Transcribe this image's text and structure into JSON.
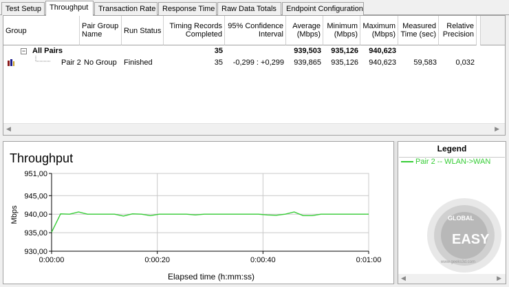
{
  "tabs": [
    {
      "label": "Test Setup"
    },
    {
      "label": "Throughput"
    },
    {
      "label": "Transaction Rate"
    },
    {
      "label": "Response Time"
    },
    {
      "label": "Raw Data Totals"
    },
    {
      "label": "Endpoint Configuration"
    }
  ],
  "table": {
    "headers": {
      "group": "Group",
      "pair_group_1": "Pair Group",
      "pair_group_2": "Name",
      "run_status": "Run Status",
      "timing_1": "Timing Records",
      "timing_2": "Completed",
      "conf_1": "95% Confidence",
      "conf_2": "Interval",
      "avg_1": "Average",
      "avg_2": "(Mbps)",
      "min_1": "Minimum",
      "min_2": "(Mbps)",
      "max_1": "Maximum",
      "max_2": "(Mbps)",
      "meas_1": "Measured",
      "meas_2": "Time (sec)",
      "rel_1": "Relative",
      "rel_2": "Precision"
    },
    "all_pairs": {
      "expander": "−",
      "label": "All Pairs",
      "timing": "35",
      "average": "939,503",
      "minimum": "935,126",
      "maximum": "940,623"
    },
    "pair": {
      "label": "Pair 2",
      "group_name": "No Group",
      "status": "Finished",
      "timing": "35",
      "confidence": "-0,299 : +0,299",
      "average": "939,865",
      "minimum": "935,126",
      "maximum": "940,623",
      "measured": "59,583",
      "relative": "0,032"
    }
  },
  "chart_data": {
    "type": "line",
    "title": "Throughput",
    "xlabel": "Elapsed time (h:mm:ss)",
    "ylabel": "Mbps",
    "ylim": [
      930,
      951
    ],
    "yticks": [
      "930,00",
      "935,00",
      "940,00",
      "945,00",
      "951,00"
    ],
    "ytick_values": [
      930,
      935,
      940,
      945,
      951
    ],
    "xlim": [
      0,
      60
    ],
    "xticks": [
      "0:00:00",
      "0:00:20",
      "0:00:40",
      "0:01:00"
    ],
    "xtick_values": [
      0,
      20,
      40,
      60
    ],
    "grid": true,
    "series": [
      {
        "name": "Pair 2 -- WLAN->WAN",
        "color": "#33cc33",
        "x": [
          0,
          1.7,
          3.4,
          5.1,
          6.8,
          8.5,
          10.2,
          11.9,
          13.6,
          15.3,
          17.0,
          18.7,
          20.4,
          22.1,
          23.8,
          25.5,
          27.2,
          28.9,
          30.6,
          32.3,
          34.0,
          35.7,
          37.4,
          39.1,
          40.8,
          42.5,
          44.2,
          45.9,
          47.6,
          49.3,
          51.0,
          52.7,
          54.4,
          56.1,
          57.8,
          59.6
        ],
        "y": [
          935.13,
          940.1,
          940.0,
          940.6,
          940.0,
          940.0,
          940.0,
          940.0,
          939.5,
          940.1,
          940.0,
          939.6,
          940.0,
          940.0,
          940.0,
          940.0,
          939.8,
          940.0,
          940.0,
          940.0,
          940.0,
          940.0,
          940.0,
          940.0,
          939.8,
          939.7,
          940.0,
          940.6,
          939.6,
          939.6,
          940.0,
          940.0,
          940.0,
          940.0,
          940.0,
          940.0
        ]
      }
    ]
  },
  "legend": {
    "title": "Legend",
    "item": "Pair 2 -- WLAN->WAN"
  },
  "watermark": {
    "text_top": "GLOBAL",
    "text_mid": "EASY",
    "text_bottom": "www.geeks3d.com"
  },
  "colors": {
    "series": "#33cc33",
    "grid": "#c8c8c8"
  }
}
